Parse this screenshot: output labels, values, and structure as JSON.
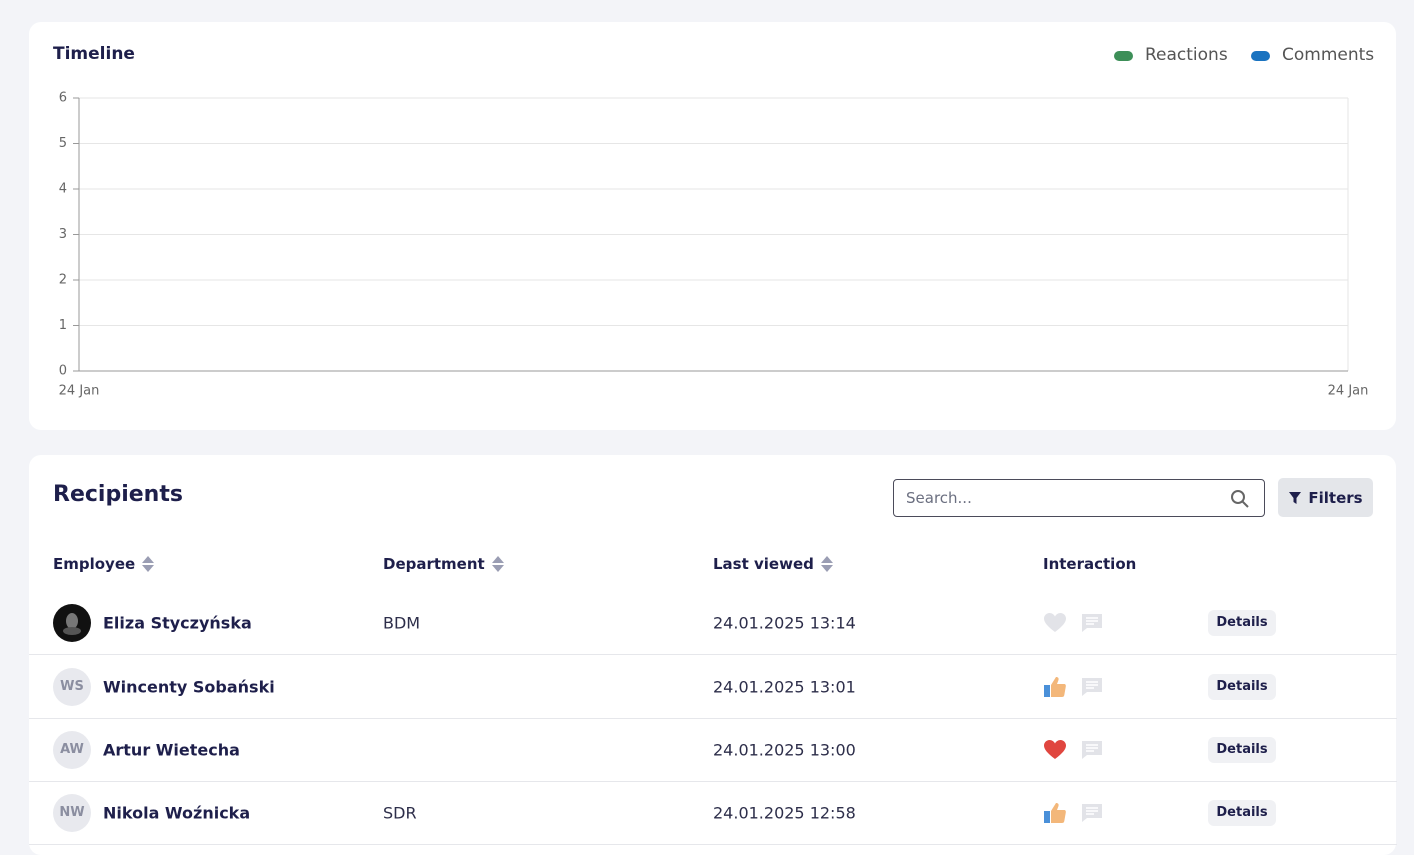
{
  "chart_data": {
    "type": "line",
    "title": "Timeline",
    "categories": [
      "24 Jan",
      "24 Jan"
    ],
    "series": [
      {
        "name": "Reactions",
        "color": "#3d8f58",
        "values": [
          null,
          null
        ]
      },
      {
        "name": "Comments",
        "color": "#1a73c0",
        "values": [
          null,
          null
        ]
      }
    ],
    "ylim": [
      0,
      6
    ],
    "yticks": [
      0,
      1,
      2,
      3,
      4,
      5,
      6
    ],
    "grid": true
  },
  "recipients": {
    "title": "Recipients",
    "search_placeholder": "Search...",
    "filters_button": "Filters",
    "columns": [
      "Employee",
      "Department",
      "Last viewed",
      "Interaction"
    ],
    "details_button": "Details",
    "rows": [
      {
        "name": "Eliza Styczyńska",
        "department": "BDM",
        "last_viewed": "24.01.2025 13:14"
      },
      {
        "initials": "WS",
        "name": "Wincenty Sobański",
        "last_viewed": "24.01.2025 13:01"
      },
      {
        "initials": "AW",
        "name": "Artur Wietecha",
        "last_viewed": "24.01.2025 13:00"
      },
      {
        "initials": "NW",
        "name": "Nikola Woźnicka",
        "department": "SDR",
        "last_viewed": "24.01.2025 12:58"
      }
    ]
  }
}
